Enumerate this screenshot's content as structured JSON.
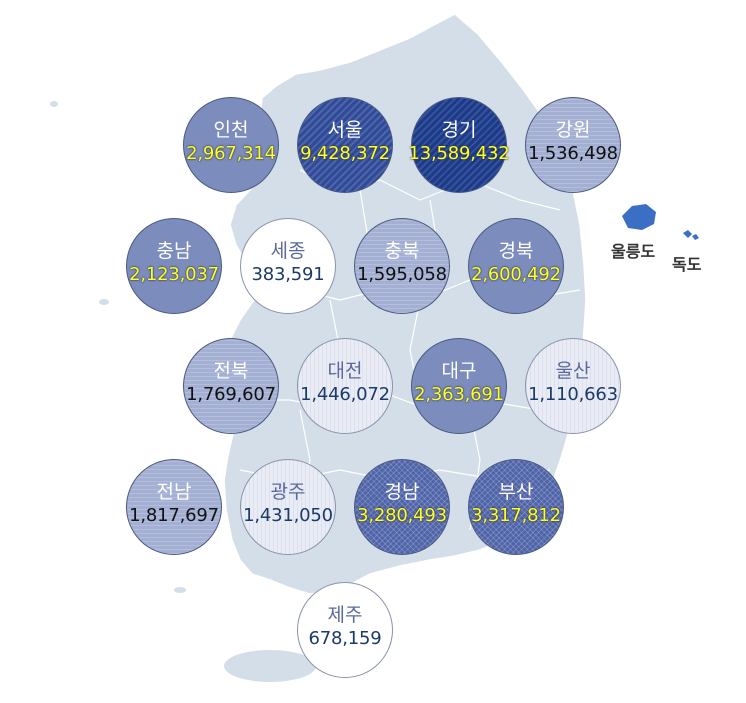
{
  "regions": [
    {
      "name": "인천",
      "value": "2,967,314"
    },
    {
      "name": "서울",
      "value": "9,428,372"
    },
    {
      "name": "경기",
      "value": "13,589,432"
    },
    {
      "name": "강원",
      "value": "1,536,498"
    },
    {
      "name": "충남",
      "value": "2,123,037"
    },
    {
      "name": "세종",
      "value": "383,591"
    },
    {
      "name": "충북",
      "value": "1,595,058"
    },
    {
      "name": "경북",
      "value": "2,600,492"
    },
    {
      "name": "전북",
      "value": "1,769,607"
    },
    {
      "name": "대전",
      "value": "1,446,072"
    },
    {
      "name": "대구",
      "value": "2,363,691"
    },
    {
      "name": "울산",
      "value": "1,110,663"
    },
    {
      "name": "전남",
      "value": "1,817,697"
    },
    {
      "name": "광주",
      "value": "1,431,050"
    },
    {
      "name": "경남",
      "value": "3,280,493"
    },
    {
      "name": "부산",
      "value": "3,317,812"
    },
    {
      "name": "제주",
      "value": "678,159"
    }
  ],
  "islands": {
    "ulleungdo": "울릉도",
    "dokdo": "독도"
  },
  "colors": {
    "map": "#d3dee8",
    "map_border": "#ffffff",
    "island": "#3a6fc4",
    "value_highlight": "#ffff2a"
  }
}
